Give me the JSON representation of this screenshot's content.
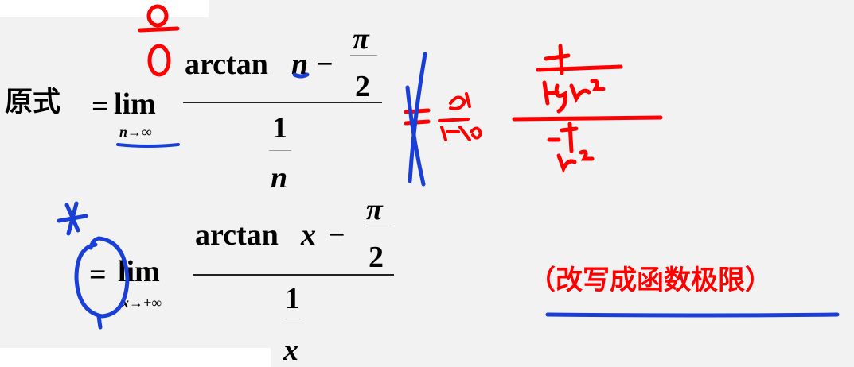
{
  "line1": {
    "lhs": "原式",
    "equals": "=",
    "lim": "lim",
    "limit_sub": "n→∞",
    "numerator_func": "arctan",
    "numerator_var": "n",
    "minus": "−",
    "pi": "π",
    "two": "2",
    "denominator_one": "1",
    "denominator_var": "n"
  },
  "line2": {
    "equals": "=",
    "lim": "lim",
    "limit_sub": "x→+∞",
    "numerator_func": "arctan",
    "numerator_var": "x",
    "minus": "−",
    "pi": "π",
    "two": "2",
    "denominator_one": "1",
    "denominator_var": "x"
  },
  "note": "（改写成函数极限）",
  "colors": {
    "text": "#000000",
    "note": "#ff0000",
    "ink_red": "#ff0000",
    "ink_blue": "#1a3fd6",
    "background": "#f2f2f2"
  },
  "handwriting_icons": [
    "red-zero-over-zero-icon",
    "red-derivative-fraction-icon",
    "blue-cross-out-icon",
    "blue-circle-icon",
    "blue-underline-icon"
  ]
}
